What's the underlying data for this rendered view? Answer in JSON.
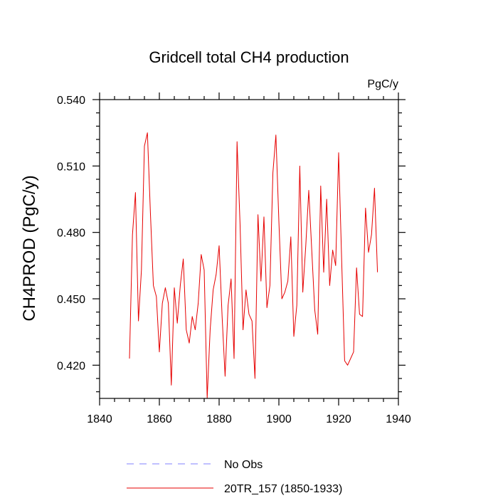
{
  "chart_data": {
    "type": "line",
    "title": "Gridcell total CH4 production",
    "units": "PgC/y",
    "xlabel": "",
    "ylabel": "CH4PROD  (PgC/y)",
    "xlim": [
      1840,
      1940
    ],
    "ylim": [
      0.405,
      0.54
    ],
    "x_ticks": [
      1840,
      1860,
      1880,
      1900,
      1920,
      1940
    ],
    "x_tick_labels": [
      "1840",
      "1860",
      "1880",
      "1900",
      "1920",
      "1940"
    ],
    "y_ticks": [
      0.42,
      0.45,
      0.48,
      0.51,
      0.54
    ],
    "y_tick_labels": [
      "0.420",
      "0.450",
      "0.480",
      "0.510",
      "0.540"
    ],
    "series": [
      {
        "name": "20TR_157 (1850-1933)",
        "color": "#e60000",
        "x": [
          1850,
          1851,
          1852,
          1853,
          1854,
          1855,
          1856,
          1857,
          1858,
          1859,
          1860,
          1861,
          1862,
          1863,
          1864,
          1865,
          1866,
          1867,
          1868,
          1869,
          1870,
          1871,
          1872,
          1873,
          1874,
          1875,
          1876,
          1877,
          1878,
          1879,
          1880,
          1881,
          1882,
          1883,
          1884,
          1885,
          1886,
          1887,
          1888,
          1889,
          1890,
          1891,
          1892,
          1893,
          1894,
          1895,
          1896,
          1897,
          1898,
          1899,
          1900,
          1901,
          1902,
          1903,
          1904,
          1905,
          1906,
          1907,
          1908,
          1909,
          1910,
          1911,
          1912,
          1913,
          1914,
          1915,
          1916,
          1917,
          1918,
          1919,
          1920,
          1921,
          1922,
          1923,
          1924,
          1925,
          1926,
          1927,
          1928,
          1929,
          1930,
          1931,
          1932,
          1933
        ],
        "values": [
          0.423,
          0.479,
          0.498,
          0.44,
          0.463,
          0.519,
          0.525,
          0.489,
          0.456,
          0.451,
          0.426,
          0.448,
          0.455,
          0.448,
          0.411,
          0.455,
          0.439,
          0.456,
          0.468,
          0.436,
          0.43,
          0.442,
          0.436,
          0.448,
          0.47,
          0.463,
          0.405,
          0.436,
          0.454,
          0.461,
          0.474,
          0.442,
          0.415,
          0.447,
          0.459,
          0.423,
          0.521,
          0.484,
          0.436,
          0.454,
          0.443,
          0.44,
          0.414,
          0.488,
          0.458,
          0.487,
          0.446,
          0.456,
          0.507,
          0.524,
          0.485,
          0.45,
          0.453,
          0.458,
          0.478,
          0.433,
          0.447,
          0.51,
          0.453,
          0.474,
          0.499,
          0.472,
          0.445,
          0.434,
          0.501,
          0.462,
          0.495,
          0.456,
          0.472,
          0.465,
          0.516,
          0.468,
          0.422,
          0.42,
          0.423,
          0.426,
          0.464,
          0.443,
          0.442,
          0.491,
          0.471,
          0.479,
          0.5,
          0.462
        ]
      },
      {
        "name": "No Obs",
        "color": "#8080ff",
        "dashed": true,
        "x": [],
        "values": []
      }
    ],
    "legend_position": "bottom-left"
  }
}
